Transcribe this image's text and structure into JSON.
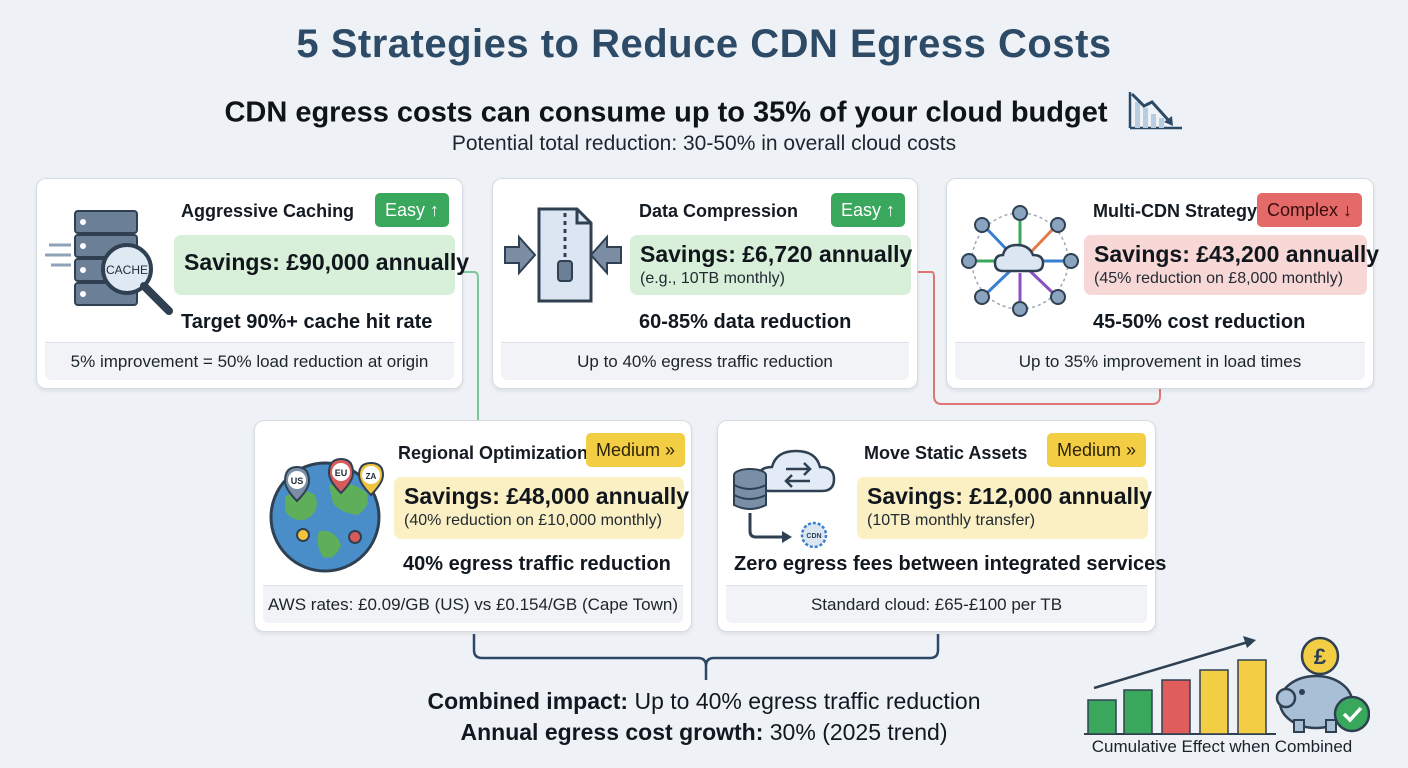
{
  "header": {
    "title": "5 Strategies to Reduce CDN Egress Costs",
    "subtitle": "CDN egress costs can consume up to 35% of your cloud budget",
    "potential": "Potential total reduction: 30-50% in overall cloud costs"
  },
  "strategies": [
    {
      "title": "Aggressive Caching",
      "difficulty": "Easy ↑",
      "savings": "Savings: £90,000 annually",
      "note": "",
      "metric": "Target 90%+ cache hit rate",
      "footer": "5% improvement = 50% load reduction at origin",
      "icon_text": "CACHE"
    },
    {
      "title": "Data Compression",
      "difficulty": "Easy ↑",
      "savings": "Savings: £6,720 annually",
      "note": "(e.g., 10TB monthly)",
      "metric": "60-85% data reduction",
      "footer": "Up to 40% egress traffic reduction"
    },
    {
      "title": "Multi-CDN Strategy",
      "difficulty": "Complex ↓",
      "savings": "Savings: £43,200 annually",
      "note": "(45% reduction on £8,000 monthly)",
      "metric": "45-50% cost reduction",
      "footer": "Up to 35% improvement in load times"
    },
    {
      "title": "Regional Optimization",
      "difficulty": "Medium »",
      "savings": "Savings: £48,000 annually",
      "note": "(40% reduction on £10,000 monthly)",
      "metric": "40% egress traffic reduction",
      "footer": "AWS rates: £0.09/GB (US) vs £0.154/GB (Cape Town)",
      "pins": [
        "US",
        "EU",
        "ZA"
      ]
    },
    {
      "title": "Move Static Assets",
      "difficulty": "Medium »",
      "savings": "Savings: £12,000 annually",
      "note": "(10TB monthly transfer)",
      "metric": "Zero egress fees between integrated services",
      "footer": "Standard cloud: £65-£100 per TB",
      "icon_text": "CDN"
    }
  ],
  "combined": {
    "impact_label": "Combined impact:",
    "impact_value": " Up to 40% egress traffic reduction",
    "growth_label": "Annual egress cost growth:",
    "growth_value": " 30% (2025 trend)"
  },
  "cumulative": {
    "label": "Cumulative Effect when Combined",
    "currency_symbol": "£"
  },
  "colors": {
    "title": "#2d4a66",
    "easy": "#3aa85c",
    "complex": "#e46a6a",
    "medium": "#f3cd44",
    "connector_green": "#7cc79a",
    "connector_red": "#e07575",
    "connector_navy": "#2f4766"
  }
}
